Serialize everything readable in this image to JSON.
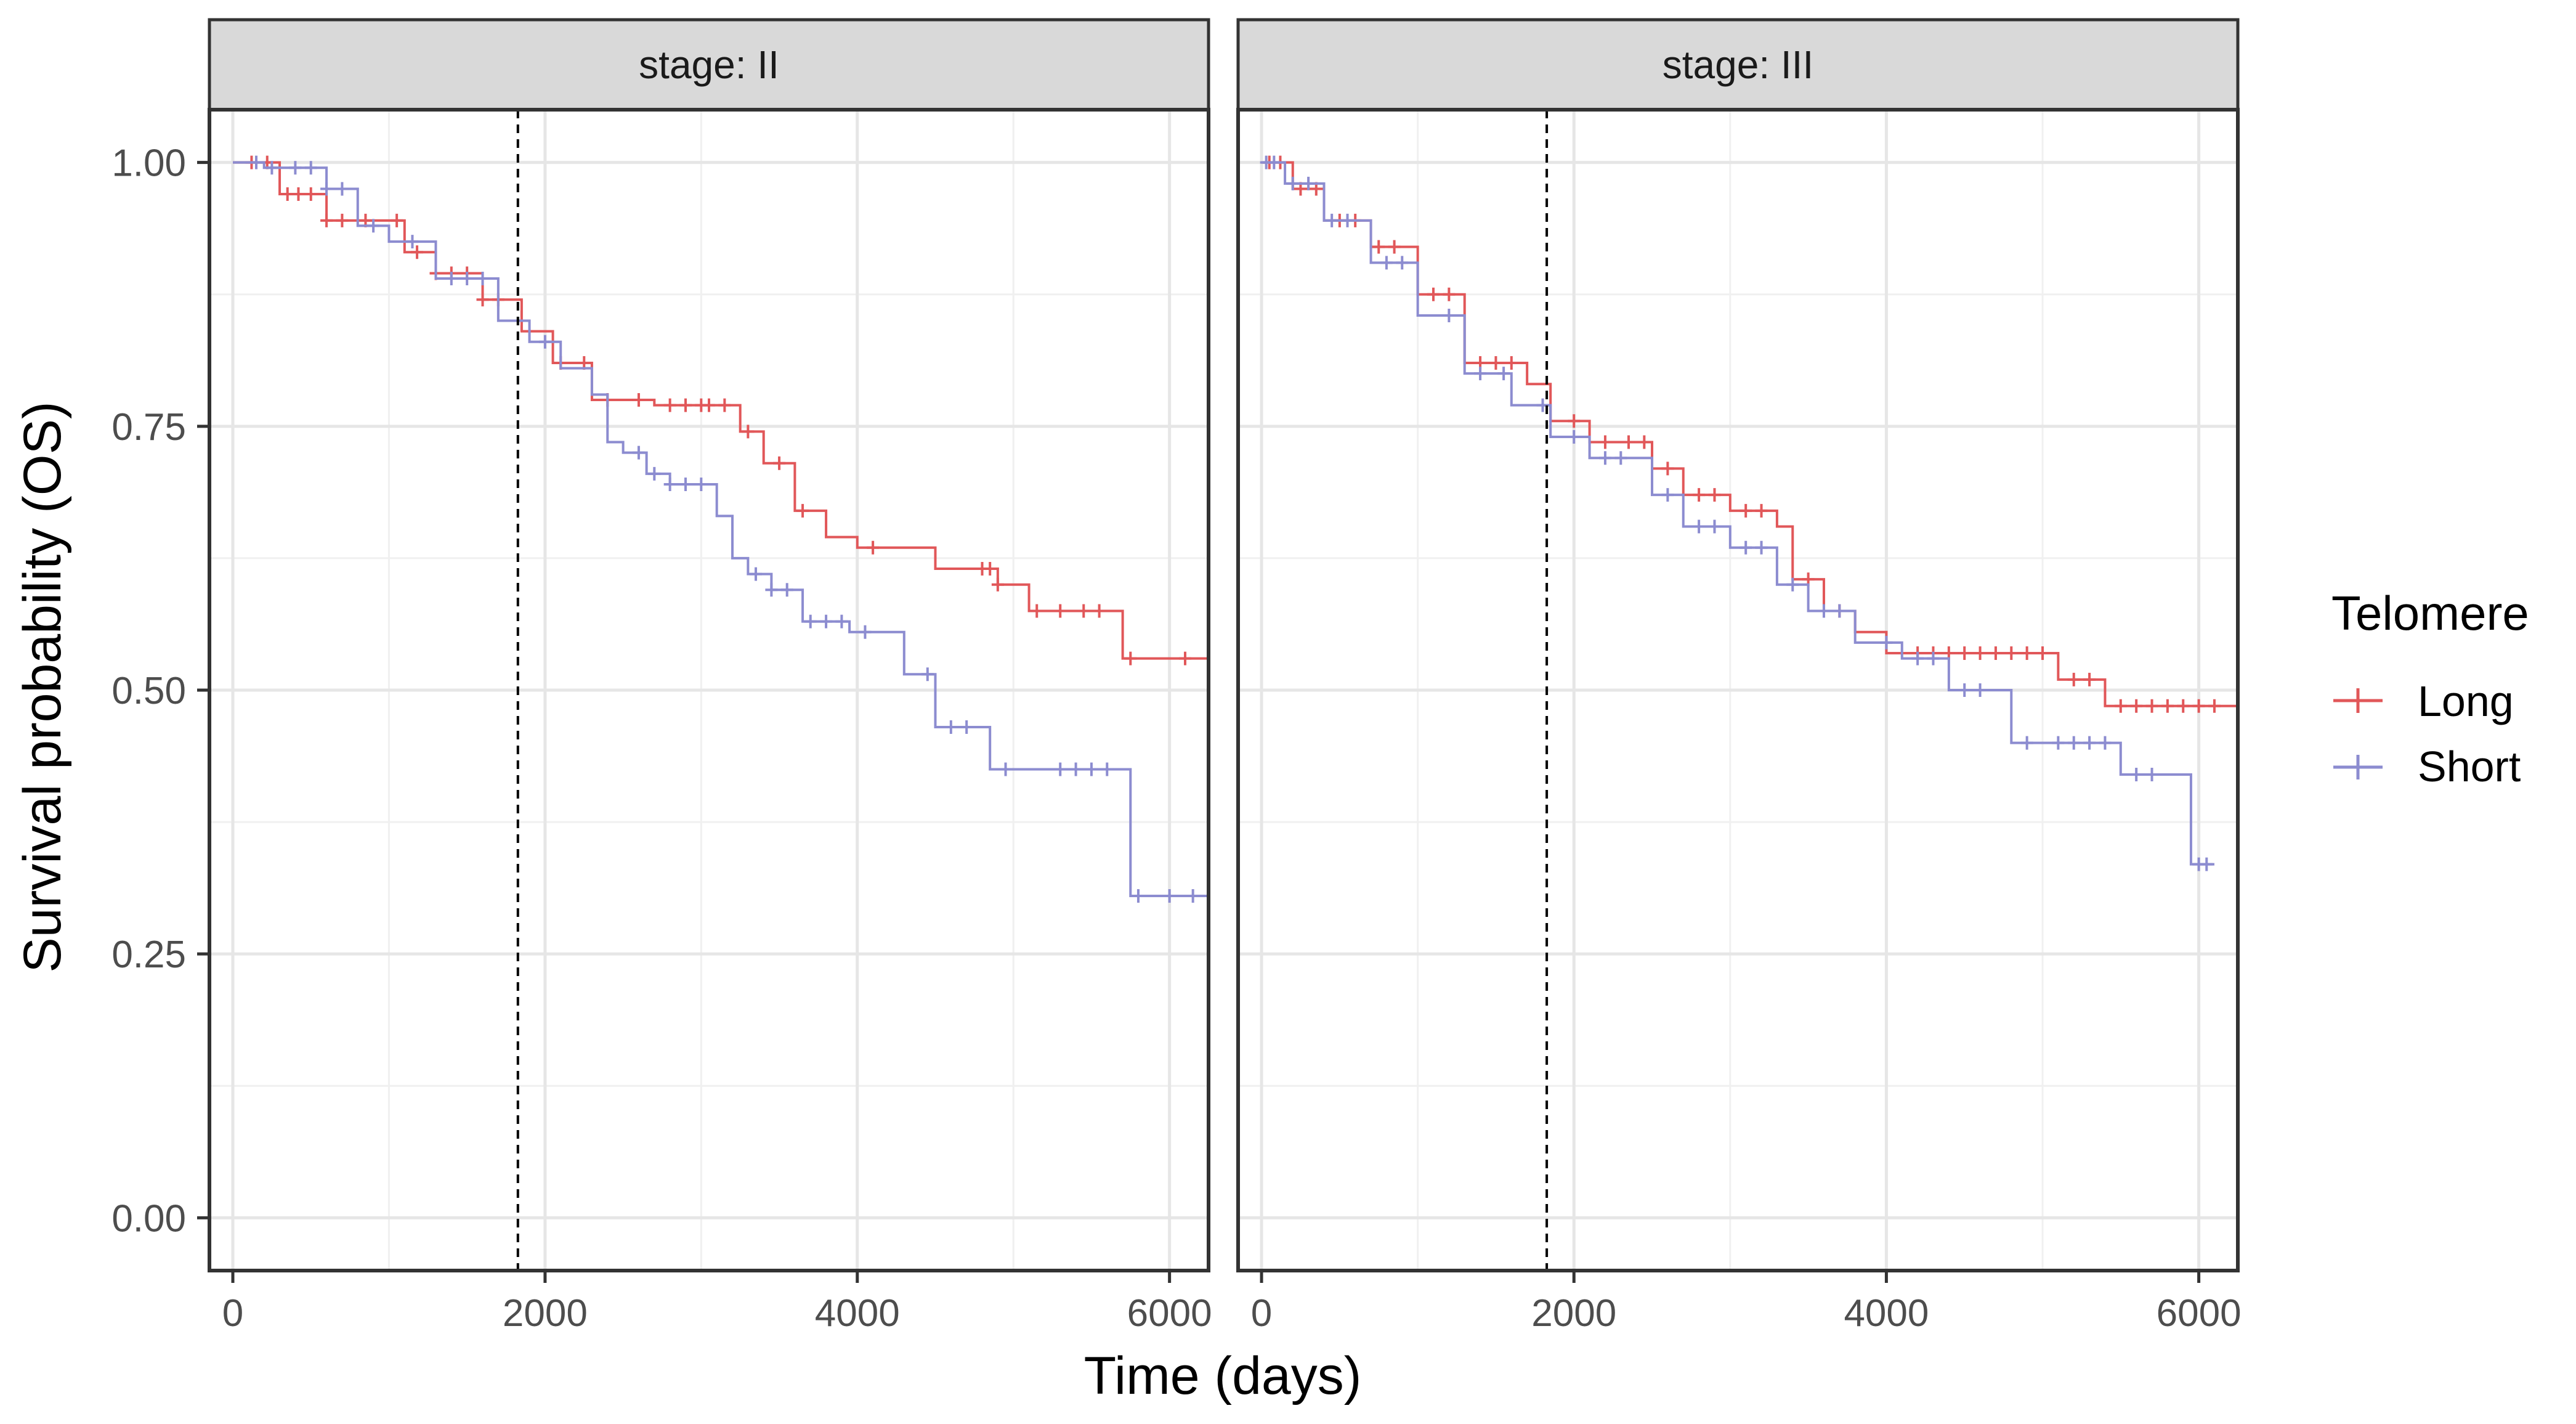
{
  "chart_data": {
    "type": "line",
    "subtype": "kaplan-meier step curves, faceted",
    "xlabel": "Time (days)",
    "ylabel": "Survival probability (OS)",
    "xlim": [
      -150,
      6250
    ],
    "ylim": [
      -0.05,
      1.05
    ],
    "x_ticks": [
      0,
      2000,
      4000,
      6000
    ],
    "x_tick_labels": [
      "0",
      "2000",
      "4000",
      "6000"
    ],
    "y_ticks": [
      0,
      0.25,
      0.5,
      0.75,
      1.0
    ],
    "y_tick_labels": [
      "0.00",
      "0.25",
      "0.50",
      "0.75",
      "1.00"
    ],
    "grid": true,
    "reference_line_x": 1826,
    "legend": {
      "title": "Telomere",
      "position": "right",
      "entries": [
        {
          "label": "Long",
          "color": "#E15759"
        },
        {
          "label": "Short",
          "color": "#8C8CD0"
        }
      ]
    },
    "facets": [
      {
        "strip": "stage: II",
        "series": [
          {
            "name": "Long",
            "color": "#E15759",
            "x": [
              0,
              300,
              600,
              1100,
              1300,
              1600,
              1850,
              2050,
              2300,
              2700,
              3100,
              3250,
              3400,
              3600,
              3800,
              4000,
              4500,
              4900,
              5100,
              5700,
              6250
            ],
            "y": [
              1.0,
              0.97,
              0.945,
              0.915,
              0.895,
              0.87,
              0.84,
              0.81,
              0.775,
              0.77,
              0.77,
              0.745,
              0.715,
              0.67,
              0.645,
              0.635,
              0.615,
              0.6,
              0.575,
              0.53,
              0.53
            ],
            "censor_x": [
              120,
              220,
              350,
              420,
              500,
              600,
              700,
              850,
              1050,
              1180,
              1300,
              1400,
              1500,
              1600,
              1700,
              2100,
              2250,
              2400,
              2600,
              2800,
              2900,
              3000,
              3050,
              3150,
              3300,
              3500,
              3650,
              4100,
              4800,
              4850,
              4900,
              5150,
              5300,
              5450,
              5550,
              5750,
              6100
            ]
          },
          {
            "name": "Short",
            "color": "#8C8CD0",
            "x": [
              0,
              200,
              600,
              800,
              1000,
              1300,
              1700,
              1900,
              2100,
              2300,
              2400,
              2500,
              2650,
              2800,
              3100,
              3200,
              3300,
              3450,
              3650,
              3950,
              4300,
              4500,
              4850,
              5200,
              5750,
              6250
            ],
            "y": [
              1.0,
              0.995,
              0.975,
              0.94,
              0.925,
              0.89,
              0.85,
              0.83,
              0.805,
              0.78,
              0.735,
              0.725,
              0.705,
              0.695,
              0.665,
              0.625,
              0.61,
              0.595,
              0.565,
              0.555,
              0.515,
              0.465,
              0.425,
              0.425,
              0.305,
              0.305
            ],
            "censor_x": [
              150,
              250,
              400,
              500,
              600,
              700,
              900,
              1150,
              1400,
              1500,
              1600,
              2000,
              2600,
              2700,
              2800,
              2900,
              3000,
              3350,
              3450,
              3550,
              3700,
              3800,
              3900,
              4050,
              4450,
              4600,
              4700,
              4950,
              5300,
              5400,
              5500,
              5600,
              5800,
              6000,
              6150
            ]
          }
        ]
      },
      {
        "strip": "stage: III",
        "series": [
          {
            "name": "Long",
            "color": "#E15759",
            "x": [
              0,
              200,
              400,
              700,
              1000,
              1300,
              1700,
              1850,
              2100,
              2500,
              2700,
              3000,
              3300,
              3400,
              3600,
              3800,
              4000,
              5100,
              5400,
              6250
            ],
            "y": [
              1.0,
              0.975,
              0.945,
              0.92,
              0.875,
              0.81,
              0.79,
              0.755,
              0.735,
              0.71,
              0.685,
              0.67,
              0.655,
              0.605,
              0.575,
              0.555,
              0.535,
              0.51,
              0.485,
              0.485
            ],
            "censor_x": [
              50,
              120,
              250,
              350,
              500,
              600,
              750,
              850,
              1100,
              1200,
              1400,
              1500,
              1600,
              2000,
              2200,
              2350,
              2450,
              2600,
              2800,
              2900,
              3100,
              3200,
              3500,
              3700,
              4200,
              4300,
              4400,
              4500,
              4600,
              4700,
              4800,
              4900,
              5000,
              5200,
              5300,
              5500,
              5600,
              5700,
              5800,
              5900,
              6000,
              6100
            ]
          },
          {
            "name": "Short",
            "color": "#8C8CD0",
            "x": [
              0,
              150,
              400,
              700,
              1000,
              1300,
              1600,
              1850,
              2100,
              2500,
              2700,
              3000,
              3300,
              3500,
              3800,
              4100,
              4400,
              4800,
              5000,
              5500,
              5950,
              6100
            ],
            "y": [
              1.0,
              0.98,
              0.945,
              0.905,
              0.855,
              0.8,
              0.77,
              0.74,
              0.72,
              0.685,
              0.655,
              0.635,
              0.6,
              0.575,
              0.545,
              0.53,
              0.5,
              0.45,
              0.45,
              0.42,
              0.335,
              0.335
            ],
            "censor_x": [
              30,
              80,
              200,
              300,
              450,
              550,
              800,
              900,
              1200,
              1400,
              1550,
              1800,
              2000,
              2200,
              2300,
              2600,
              2800,
              2900,
              3100,
              3200,
              3400,
              3600,
              3700,
              4000,
              4200,
              4300,
              4500,
              4600,
              4900,
              5100,
              5200,
              5300,
              5400,
              5600,
              5700,
              6000,
              6050
            ]
          }
        ]
      }
    ]
  }
}
